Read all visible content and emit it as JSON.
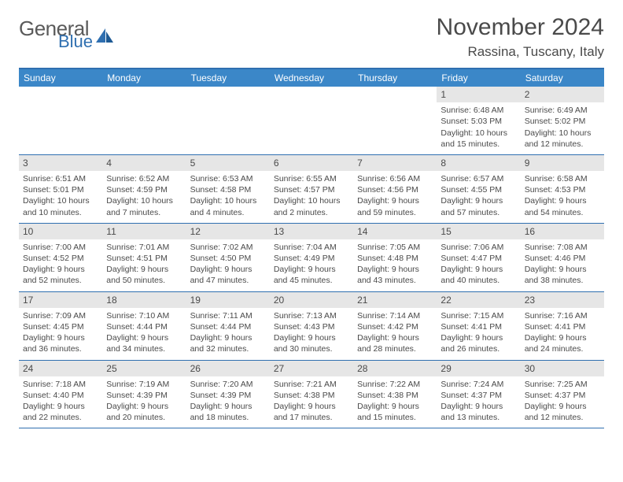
{
  "brand": {
    "general": "General",
    "blue": "Blue"
  },
  "title": "November 2024",
  "location": "Rassina, Tuscany, Italy",
  "colors": {
    "header_bg": "#3b87c8",
    "border": "#2f6fb0",
    "daynum_bg": "#e6e6e6",
    "text": "#4a4a4a",
    "brand_blue": "#2f6fb0"
  },
  "dows": [
    "Sunday",
    "Monday",
    "Tuesday",
    "Wednesday",
    "Thursday",
    "Friday",
    "Saturday"
  ],
  "weeks": [
    [
      null,
      null,
      null,
      null,
      null,
      {
        "n": "1",
        "sr": "Sunrise: 6:48 AM",
        "ss": "Sunset: 5:03 PM",
        "d1": "Daylight: 10 hours",
        "d2": "and 15 minutes."
      },
      {
        "n": "2",
        "sr": "Sunrise: 6:49 AM",
        "ss": "Sunset: 5:02 PM",
        "d1": "Daylight: 10 hours",
        "d2": "and 12 minutes."
      }
    ],
    [
      {
        "n": "3",
        "sr": "Sunrise: 6:51 AM",
        "ss": "Sunset: 5:01 PM",
        "d1": "Daylight: 10 hours",
        "d2": "and 10 minutes."
      },
      {
        "n": "4",
        "sr": "Sunrise: 6:52 AM",
        "ss": "Sunset: 4:59 PM",
        "d1": "Daylight: 10 hours",
        "d2": "and 7 minutes."
      },
      {
        "n": "5",
        "sr": "Sunrise: 6:53 AM",
        "ss": "Sunset: 4:58 PM",
        "d1": "Daylight: 10 hours",
        "d2": "and 4 minutes."
      },
      {
        "n": "6",
        "sr": "Sunrise: 6:55 AM",
        "ss": "Sunset: 4:57 PM",
        "d1": "Daylight: 10 hours",
        "d2": "and 2 minutes."
      },
      {
        "n": "7",
        "sr": "Sunrise: 6:56 AM",
        "ss": "Sunset: 4:56 PM",
        "d1": "Daylight: 9 hours",
        "d2": "and 59 minutes."
      },
      {
        "n": "8",
        "sr": "Sunrise: 6:57 AM",
        "ss": "Sunset: 4:55 PM",
        "d1": "Daylight: 9 hours",
        "d2": "and 57 minutes."
      },
      {
        "n": "9",
        "sr": "Sunrise: 6:58 AM",
        "ss": "Sunset: 4:53 PM",
        "d1": "Daylight: 9 hours",
        "d2": "and 54 minutes."
      }
    ],
    [
      {
        "n": "10",
        "sr": "Sunrise: 7:00 AM",
        "ss": "Sunset: 4:52 PM",
        "d1": "Daylight: 9 hours",
        "d2": "and 52 minutes."
      },
      {
        "n": "11",
        "sr": "Sunrise: 7:01 AM",
        "ss": "Sunset: 4:51 PM",
        "d1": "Daylight: 9 hours",
        "d2": "and 50 minutes."
      },
      {
        "n": "12",
        "sr": "Sunrise: 7:02 AM",
        "ss": "Sunset: 4:50 PM",
        "d1": "Daylight: 9 hours",
        "d2": "and 47 minutes."
      },
      {
        "n": "13",
        "sr": "Sunrise: 7:04 AM",
        "ss": "Sunset: 4:49 PM",
        "d1": "Daylight: 9 hours",
        "d2": "and 45 minutes."
      },
      {
        "n": "14",
        "sr": "Sunrise: 7:05 AM",
        "ss": "Sunset: 4:48 PM",
        "d1": "Daylight: 9 hours",
        "d2": "and 43 minutes."
      },
      {
        "n": "15",
        "sr": "Sunrise: 7:06 AM",
        "ss": "Sunset: 4:47 PM",
        "d1": "Daylight: 9 hours",
        "d2": "and 40 minutes."
      },
      {
        "n": "16",
        "sr": "Sunrise: 7:08 AM",
        "ss": "Sunset: 4:46 PM",
        "d1": "Daylight: 9 hours",
        "d2": "and 38 minutes."
      }
    ],
    [
      {
        "n": "17",
        "sr": "Sunrise: 7:09 AM",
        "ss": "Sunset: 4:45 PM",
        "d1": "Daylight: 9 hours",
        "d2": "and 36 minutes."
      },
      {
        "n": "18",
        "sr": "Sunrise: 7:10 AM",
        "ss": "Sunset: 4:44 PM",
        "d1": "Daylight: 9 hours",
        "d2": "and 34 minutes."
      },
      {
        "n": "19",
        "sr": "Sunrise: 7:11 AM",
        "ss": "Sunset: 4:44 PM",
        "d1": "Daylight: 9 hours",
        "d2": "and 32 minutes."
      },
      {
        "n": "20",
        "sr": "Sunrise: 7:13 AM",
        "ss": "Sunset: 4:43 PM",
        "d1": "Daylight: 9 hours",
        "d2": "and 30 minutes."
      },
      {
        "n": "21",
        "sr": "Sunrise: 7:14 AM",
        "ss": "Sunset: 4:42 PM",
        "d1": "Daylight: 9 hours",
        "d2": "and 28 minutes."
      },
      {
        "n": "22",
        "sr": "Sunrise: 7:15 AM",
        "ss": "Sunset: 4:41 PM",
        "d1": "Daylight: 9 hours",
        "d2": "and 26 minutes."
      },
      {
        "n": "23",
        "sr": "Sunrise: 7:16 AM",
        "ss": "Sunset: 4:41 PM",
        "d1": "Daylight: 9 hours",
        "d2": "and 24 minutes."
      }
    ],
    [
      {
        "n": "24",
        "sr": "Sunrise: 7:18 AM",
        "ss": "Sunset: 4:40 PM",
        "d1": "Daylight: 9 hours",
        "d2": "and 22 minutes."
      },
      {
        "n": "25",
        "sr": "Sunrise: 7:19 AM",
        "ss": "Sunset: 4:39 PM",
        "d1": "Daylight: 9 hours",
        "d2": "and 20 minutes."
      },
      {
        "n": "26",
        "sr": "Sunrise: 7:20 AM",
        "ss": "Sunset: 4:39 PM",
        "d1": "Daylight: 9 hours",
        "d2": "and 18 minutes."
      },
      {
        "n": "27",
        "sr": "Sunrise: 7:21 AM",
        "ss": "Sunset: 4:38 PM",
        "d1": "Daylight: 9 hours",
        "d2": "and 17 minutes."
      },
      {
        "n": "28",
        "sr": "Sunrise: 7:22 AM",
        "ss": "Sunset: 4:38 PM",
        "d1": "Daylight: 9 hours",
        "d2": "and 15 minutes."
      },
      {
        "n": "29",
        "sr": "Sunrise: 7:24 AM",
        "ss": "Sunset: 4:37 PM",
        "d1": "Daylight: 9 hours",
        "d2": "and 13 minutes."
      },
      {
        "n": "30",
        "sr": "Sunrise: 7:25 AM",
        "ss": "Sunset: 4:37 PM",
        "d1": "Daylight: 9 hours",
        "d2": "and 12 minutes."
      }
    ]
  ]
}
